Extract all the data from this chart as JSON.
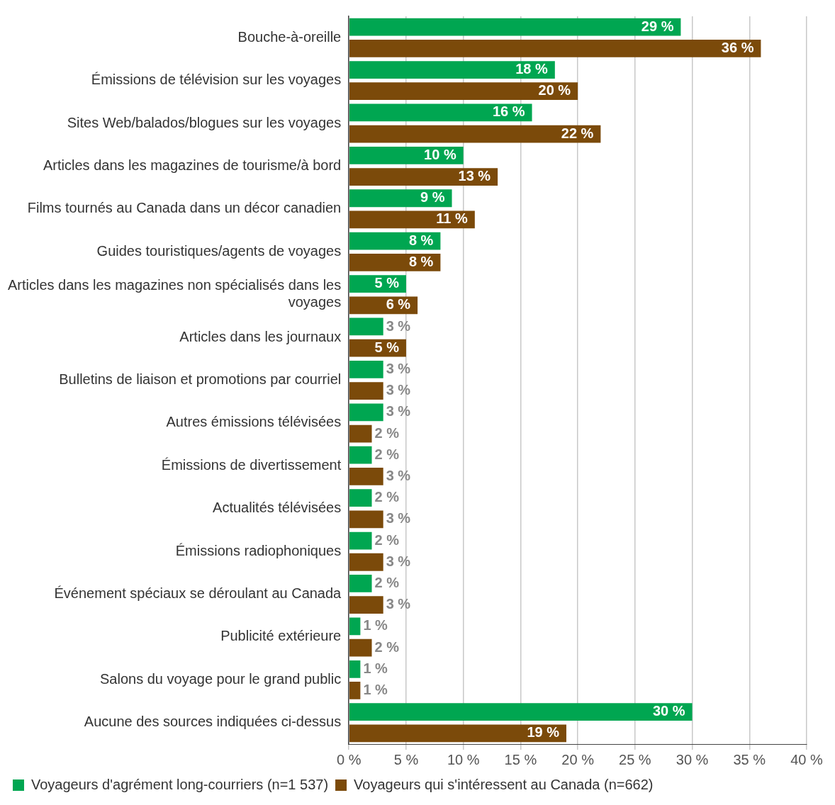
{
  "chart_data": {
    "type": "bar",
    "orientation": "horizontal",
    "categories": [
      "Bouche-à-oreille",
      "Émissions de télévision sur les voyages",
      "Sites Web/balados/blogues sur les voyages",
      "Articles dans les magazines de tourisme/à bord",
      "Films tournés au Canada dans un décor canadien",
      "Guides touristiques/agents de voyages",
      "Articles dans les magazines non spécialisés dans les voyages",
      "Articles dans les journaux",
      "Bulletins de liaison et promotions par courriel",
      "Autres émissions télévisées",
      "Émissions de divertissement",
      "Actualités télévisées",
      "Émissions radiophoniques",
      "Événement spéciaux se déroulant au Canada",
      "Publicité extérieure",
      "Salons du voyage pour le grand public",
      "Aucune des sources indiquées ci-dessus"
    ],
    "series": [
      {
        "name": "Voyageurs d'agrément long-courriers (n=1 537)",
        "color": "#00a651",
        "values": [
          29,
          18,
          16,
          10,
          9,
          8,
          5,
          3,
          3,
          3,
          2,
          2,
          2,
          2,
          1,
          1,
          30
        ],
        "value_labels": [
          "29 %",
          "18 %",
          "16 %",
          "10 %",
          "9 %",
          "8 %",
          "5 %",
          "3 %",
          "3 %",
          "3 %",
          "2 %",
          "2 %",
          "2 %",
          "2 %",
          "1 %",
          "1 %",
          "30 %"
        ]
      },
      {
        "name": "Voyageurs qui s'intéressent au Canada (n=662)",
        "color": "#7b4a0a",
        "values": [
          36,
          20,
          22,
          13,
          11,
          8,
          6,
          5,
          3,
          2,
          3,
          3,
          3,
          3,
          2,
          1,
          19
        ],
        "value_labels": [
          "36 %",
          "20 %",
          "22 %",
          "13 %",
          "11 %",
          "8 %",
          "6 %",
          "5 %",
          "3 %",
          "2 %",
          "3 %",
          "3 %",
          "3 %",
          "3 %",
          "2 %",
          "1 %",
          "19 %"
        ]
      }
    ],
    "xlim": [
      0,
      40
    ],
    "xticks": [
      {
        "value": 0,
        "label": "0 %"
      },
      {
        "value": 5,
        "label": "5 %"
      },
      {
        "value": 10,
        "label": "10 %"
      },
      {
        "value": 15,
        "label": "15 %"
      },
      {
        "value": 20,
        "label": "20 %"
      },
      {
        "value": 25,
        "label": "25 %"
      },
      {
        "value": 30,
        "label": "30 %"
      },
      {
        "value": 35,
        "label": "35 %"
      },
      {
        "value": 40,
        "label": "40 %"
      }
    ],
    "grid": "x",
    "legend": "bottom left"
  }
}
